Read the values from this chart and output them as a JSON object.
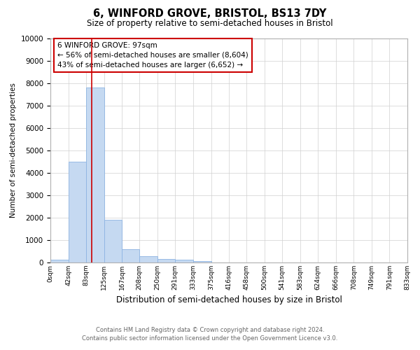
{
  "title": "6, WINFORD GROVE, BRISTOL, BS13 7DY",
  "subtitle": "Size of property relative to semi-detached houses in Bristol",
  "xlabel": "Distribution of semi-detached houses by size in Bristol",
  "ylabel": "Number of semi-detached properties",
  "footnote1": "Contains HM Land Registry data © Crown copyright and database right 2024.",
  "footnote2": "Contains public sector information licensed under the Open Government Licence v3.0.",
  "annotation_line1": "6 WINFORD GROVE: 97sqm",
  "annotation_line2": "← 56% of semi-detached houses are smaller (8,604)",
  "annotation_line3": "43% of semi-detached houses are larger (6,652) →",
  "property_size": 97,
  "bar_color": "#c5d9f1",
  "bar_edge_color": "#8db4e2",
  "vline_color": "#cc0000",
  "annotation_box_color": "#cc0000",
  "ylim": [
    0,
    10000
  ],
  "yticks": [
    0,
    1000,
    2000,
    3000,
    4000,
    5000,
    6000,
    7000,
    8000,
    9000,
    10000
  ],
  "bin_edges": [
    0,
    42,
    83,
    125,
    167,
    208,
    250,
    291,
    333,
    375,
    416,
    458,
    500,
    541,
    583,
    624,
    666,
    708,
    749,
    791,
    833
  ],
  "bin_labels": [
    "0sqm",
    "42sqm",
    "83sqm",
    "125sqm",
    "167sqm",
    "208sqm",
    "250sqm",
    "291sqm",
    "333sqm",
    "375sqm",
    "416sqm",
    "458sqm",
    "500sqm",
    "541sqm",
    "583sqm",
    "624sqm",
    "666sqm",
    "708sqm",
    "749sqm",
    "791sqm",
    "833sqm"
  ],
  "bar_heights": [
    110,
    4500,
    7800,
    1900,
    600,
    280,
    155,
    110,
    75,
    0,
    0,
    0,
    0,
    0,
    0,
    0,
    0,
    0,
    0,
    0
  ]
}
